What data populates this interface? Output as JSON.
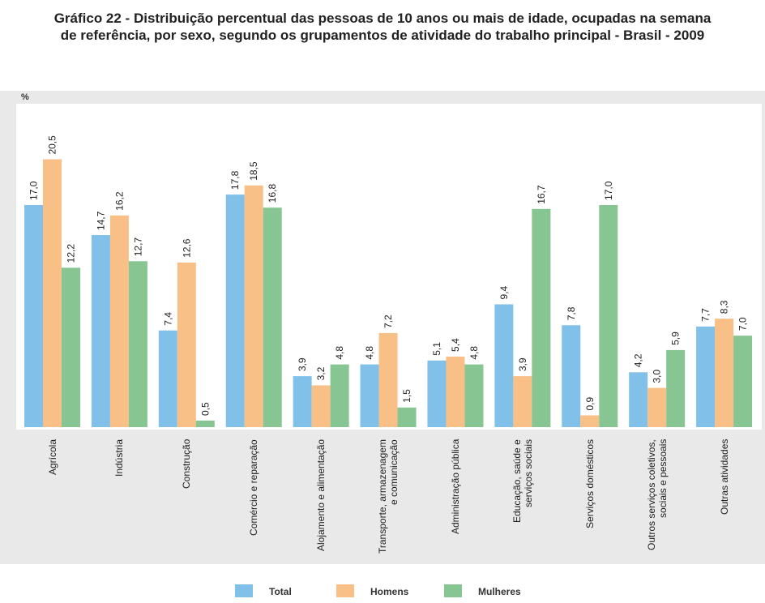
{
  "chart_data": {
    "type": "bar",
    "title": "Gráfico 22 - Distribuição percentual das pessoas de 10 anos ou mais de idade, ocupadas na semana de referência, por sexo, segundo os grupamentos de atividade do trabalho principal - Brasil - 2009",
    "y_label": "%",
    "categories": [
      "Agrícola",
      "Indústria",
      "Construção",
      "Comércio e reparação",
      "Alojamento e alimentação",
      "Transporte, armazenagem e comunicação",
      "Administração pública",
      "Educação, saúde e serviços sociais",
      "Serviços domésticos",
      "Outros serviços coletivos, sociais e pessoais",
      "Outras atividades"
    ],
    "series": [
      {
        "name": "Total",
        "color": "#80c0e9",
        "values": [
          17.0,
          14.7,
          7.4,
          17.8,
          3.9,
          4.8,
          5.1,
          9.4,
          7.8,
          4.2,
          7.7
        ],
        "value_labels": [
          "17,0",
          "14,7",
          "7,4",
          "17,8",
          "3,9",
          "4,8",
          "5,1",
          "9,4",
          "7,8",
          "4,2",
          "7,7"
        ]
      },
      {
        "name": "Homens",
        "color": "#f8bf86",
        "values": [
          20.5,
          16.2,
          12.6,
          18.5,
          3.2,
          7.2,
          5.4,
          3.9,
          0.9,
          3.0,
          8.3
        ],
        "value_labels": [
          "20,5",
          "16,2",
          "12,6",
          "18,5",
          "3,2",
          "7,2",
          "5,4",
          "3,9",
          "0,9",
          "3,0",
          "8,3"
        ]
      },
      {
        "name": "Mulheres",
        "color": "#87c593",
        "values": [
          12.2,
          12.7,
          0.5,
          16.8,
          4.8,
          1.5,
          4.8,
          16.7,
          17.0,
          5.9,
          7.0
        ],
        "value_labels": [
          "12,2",
          "12,7",
          "0,5",
          "16,8",
          "4,8",
          "1,5",
          "4,8",
          "16,7",
          "17,0",
          "5,9",
          "7,0"
        ]
      }
    ],
    "ylim": [
      0,
      25
    ]
  }
}
